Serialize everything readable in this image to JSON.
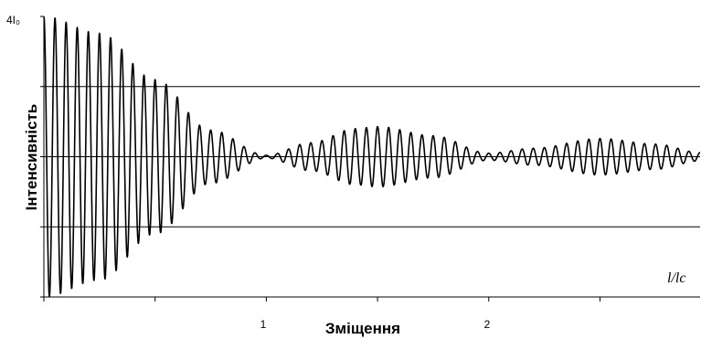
{
  "chart_data": {
    "type": "line",
    "title": "",
    "xlabel": "Зміщення",
    "ylabel": "Інтенсивність",
    "x_axis_corner_label": "l/lc",
    "xlim": [
      0,
      2.95
    ],
    "ylim": [
      0,
      4
    ],
    "x_tick_labels": [
      {
        "value": 1,
        "label": "1"
      },
      {
        "value": 2,
        "label": "2"
      }
    ],
    "x_minor_ticks": [
      0,
      0.5,
      1,
      1.5,
      2,
      2.5
    ],
    "y_tick_labels": [
      {
        "value": 4,
        "label": "4I₀"
      }
    ],
    "y_ticks": [
      0,
      1,
      2,
      3,
      4
    ],
    "grid": {
      "horizontal": [
        1,
        2,
        3
      ],
      "vertical": []
    },
    "legend": "none",
    "series": [
      {
        "style": "oscillating curve",
        "color": "#000000",
        "mean": 2,
        "oscillations_per_unit_x": 20,
        "envelope_amplitude": [
          {
            "x": 0,
            "amp": 2
          },
          {
            "x": 0.25,
            "amp": 1.76
          },
          {
            "x": 0.5,
            "amp": 1.1
          },
          {
            "x": 0.75,
            "amp": 0.38
          },
          {
            "x": 1,
            "amp": 0.02
          },
          {
            "x": 1.2,
            "amp": 0.2
          },
          {
            "x": 1.4,
            "amp": 0.4
          },
          {
            "x": 1.5,
            "amp": 0.43
          },
          {
            "x": 1.75,
            "amp": 0.3
          },
          {
            "x": 2,
            "amp": 0.05
          },
          {
            "x": 2.2,
            "amp": 0.12
          },
          {
            "x": 2.5,
            "amp": 0.26
          },
          {
            "x": 2.75,
            "amp": 0.18
          },
          {
            "x": 2.95,
            "amp": 0.06
          }
        ]
      }
    ]
  }
}
